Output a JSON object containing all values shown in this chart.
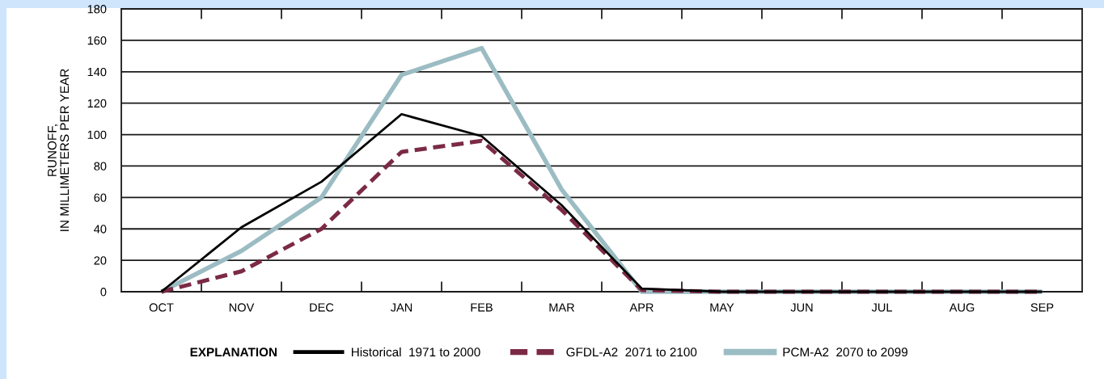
{
  "chart_data": {
    "type": "line",
    "ylabel": "RUNOFF,\nIN MILLIMETERS PER YEAR",
    "legend_title": "EXPLANATION",
    "categories": [
      "OCT",
      "NOV",
      "DEC",
      "JAN",
      "FEB",
      "MAR",
      "APR",
      "MAY",
      "JUN",
      "JUL",
      "AUG",
      "SEP"
    ],
    "series": [
      {
        "name": "Historical  1971 to 2000",
        "color": "#000000",
        "values": [
          0,
          41,
          70,
          113,
          99,
          55,
          2,
          0,
          0,
          0,
          0,
          0
        ]
      },
      {
        "name": "GFDL-A2  2071 to 2100",
        "color": "#7b2a45",
        "line_style": "dashed",
        "values": [
          0,
          13,
          40,
          89,
          96,
          52,
          1,
          0,
          0,
          0,
          0,
          0
        ]
      },
      {
        "name": "PCM-A2  2070 to 2099",
        "color": "#9bbcc2",
        "values": [
          0,
          26,
          60,
          138,
          155,
          65,
          0,
          0,
          0,
          0,
          0,
          0
        ]
      }
    ],
    "ylim": [
      0,
      180
    ],
    "yticks": [
      0,
      20,
      40,
      60,
      80,
      100,
      120,
      140,
      160,
      180
    ],
    "grid": "y",
    "legend": "bottom",
    "line_style": "solid"
  }
}
